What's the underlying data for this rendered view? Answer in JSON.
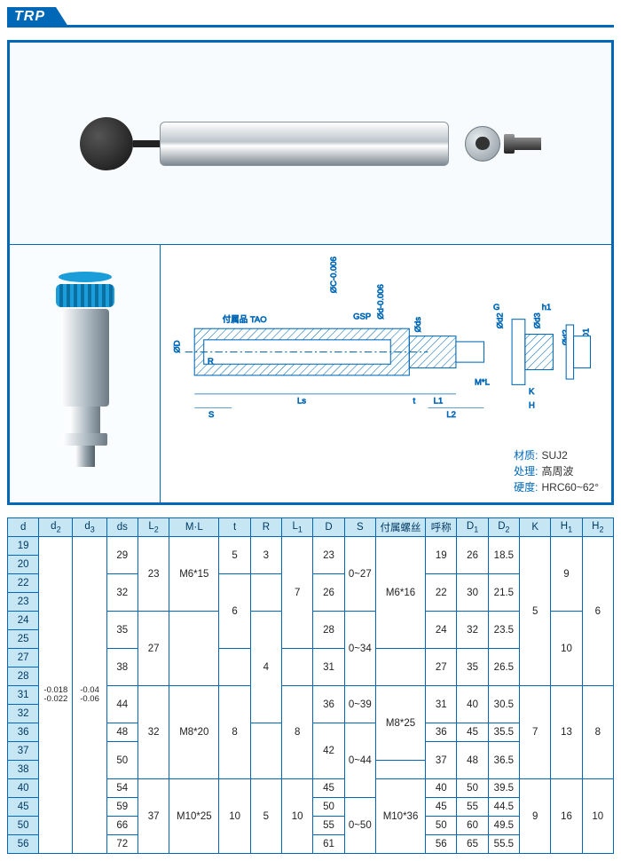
{
  "header": {
    "code": "TRP"
  },
  "material_box": {
    "rows": [
      {
        "label": "材质:",
        "value": "SUJ2"
      },
      {
        "label": "处理:",
        "value": "高周波"
      },
      {
        "label": "硬度:",
        "value": "HRC60~62°"
      }
    ]
  },
  "drawing_labels": {
    "attach": "付属品",
    "tao": "TAO",
    "gsp": "GSP",
    "dims": [
      "ØD",
      "R",
      "S",
      "Ls",
      "t",
      "L1",
      "L2",
      "M*L",
      "Øds",
      "Ød-0.006",
      "ØC-0.006",
      "Ød2",
      "Ød3",
      "G",
      "h1",
      "H",
      "K",
      "ØD1"
    ]
  },
  "table": {
    "columns": [
      "d",
      "d2",
      "d3",
      "ds",
      "L2",
      "M·L",
      "t",
      "R",
      "L1",
      "D",
      "S",
      "付属螺丝",
      "呼称",
      "D1",
      "D2",
      "K",
      "H1",
      "H2"
    ],
    "col_has_sub": [
      false,
      true,
      true,
      false,
      true,
      false,
      false,
      false,
      true,
      false,
      false,
      false,
      false,
      true,
      true,
      false,
      true,
      true
    ],
    "d_values": [
      "19",
      "20",
      "22",
      "23",
      "24",
      "25",
      "27",
      "28",
      "31",
      "32",
      "36",
      "37",
      "38",
      "40",
      "45",
      "50",
      "56"
    ],
    "d2_tol": "-0.018\n-0.022",
    "d3_tol": "-0.04\n-0.06",
    "ds_blocks": [
      {
        "v": "29",
        "span": 2
      },
      {
        "v": "32",
        "span": 2
      },
      {
        "v": "35",
        "span": 2
      },
      {
        "v": "38",
        "span": 2
      },
      {
        "v": "44",
        "span": 2
      },
      {
        "v": "48",
        "span": 1
      },
      {
        "v": "50",
        "span": 2
      },
      {
        "v": "54",
        "span": 1
      },
      {
        "v": "59",
        "span": 1
      },
      {
        "v": "66",
        "span": 1
      },
      {
        "v": "72",
        "span": 1
      }
    ],
    "L2_blocks": [
      {
        "v": "23",
        "span": 4
      },
      {
        "v": "27",
        "span": 4
      },
      {
        "v": "32",
        "span": 5
      },
      {
        "v": "37",
        "span": 4
      }
    ],
    "ML_blocks": [
      {
        "v": "M6*15",
        "span": 4
      },
      {
        "v": "",
        "span": 4
      },
      {
        "v": "M8*20",
        "span": 5
      },
      {
        "v": "M10*25",
        "span": 4
      }
    ],
    "t_blocks": [
      {
        "v": "5",
        "span": 2
      },
      {
        "v": "6",
        "span": 4
      },
      {
        "v": "",
        "span": 2
      },
      {
        "v": "8",
        "span": 5
      },
      {
        "v": "10",
        "span": 4
      }
    ],
    "R_blocks": [
      {
        "v": "3",
        "span": 2
      },
      {
        "v": "",
        "span": 2
      },
      {
        "v": "4",
        "span": 6
      },
      {
        "v": "",
        "span": 3
      },
      {
        "v": "5",
        "span": 4
      }
    ],
    "L1_blocks": [
      {
        "v": "7",
        "span": 6
      },
      {
        "v": "",
        "span": 2
      },
      {
        "v": "8",
        "span": 5
      },
      {
        "v": "10",
        "span": 4
      }
    ],
    "D_blocks": [
      {
        "v": "23",
        "span": 2
      },
      {
        "v": "26",
        "span": 2
      },
      {
        "v": "28",
        "span": 2
      },
      {
        "v": "31",
        "span": 2
      },
      {
        "v": "36",
        "span": 2
      },
      {
        "v": "42",
        "span": 3
      },
      {
        "v": "45",
        "span": 1
      },
      {
        "v": "50",
        "span": 1
      },
      {
        "v": "55",
        "span": 1
      },
      {
        "v": "61",
        "span": 1
      }
    ],
    "S_blocks": [
      {
        "v": "0~27",
        "span": 4
      },
      {
        "v": "0~34",
        "span": 4
      },
      {
        "v": "0~39",
        "span": 2
      },
      {
        "v": "0~44",
        "span": 4
      },
      {
        "v": "0~50",
        "span": 3
      }
    ],
    "screw_blocks": [
      {
        "v": "M6*16",
        "span": 6
      },
      {
        "v": "",
        "span": 2
      },
      {
        "v": "M8*25",
        "span": 4
      },
      {
        "v": "",
        "span": 1
      },
      {
        "v": "M10*36",
        "span": 4
      }
    ],
    "name_blocks": [
      {
        "v": "19",
        "span": 2
      },
      {
        "v": "22",
        "span": 2
      },
      {
        "v": "24",
        "span": 2
      },
      {
        "v": "27",
        "span": 2
      },
      {
        "v": "31",
        "span": 2
      },
      {
        "v": "36",
        "span": 1
      },
      {
        "v": "37",
        "span": 2
      },
      {
        "v": "40",
        "span": 1
      },
      {
        "v": "45",
        "span": 1
      },
      {
        "v": "50",
        "span": 1
      },
      {
        "v": "56",
        "span": 1
      }
    ],
    "D1_blocks": [
      {
        "v": "26",
        "span": 2
      },
      {
        "v": "30",
        "span": 2
      },
      {
        "v": "32",
        "span": 2
      },
      {
        "v": "35",
        "span": 2
      },
      {
        "v": "40",
        "span": 2
      },
      {
        "v": "45",
        "span": 1
      },
      {
        "v": "48",
        "span": 2
      },
      {
        "v": "50",
        "span": 1
      },
      {
        "v": "55",
        "span": 1
      },
      {
        "v": "60",
        "span": 1
      },
      {
        "v": "65",
        "span": 1
      }
    ],
    "D2_blocks": [
      {
        "v": "18.5",
        "span": 2
      },
      {
        "v": "21.5",
        "span": 2
      },
      {
        "v": "23.5",
        "span": 2
      },
      {
        "v": "26.5",
        "span": 2
      },
      {
        "v": "30.5",
        "span": 2
      },
      {
        "v": "35.5",
        "span": 1
      },
      {
        "v": "36.5",
        "span": 2
      },
      {
        "v": "39.5",
        "span": 1
      },
      {
        "v": "44.5",
        "span": 1
      },
      {
        "v": "49.5",
        "span": 1
      },
      {
        "v": "55.5",
        "span": 1
      }
    ],
    "K_blocks": [
      {
        "v": "5",
        "span": 8
      },
      {
        "v": "7",
        "span": 5
      },
      {
        "v": "9",
        "span": 4
      }
    ],
    "H1_blocks": [
      {
        "v": "9",
        "span": 4
      },
      {
        "v": "10",
        "span": 4
      },
      {
        "v": "13",
        "span": 5
      },
      {
        "v": "16",
        "span": 4
      }
    ],
    "H2_blocks": [
      {
        "v": "6",
        "span": 8
      },
      {
        "v": "8",
        "span": 5
      },
      {
        "v": "10",
        "span": 4
      }
    ]
  },
  "colors": {
    "brand": "#0068b7",
    "th_bg": "#c6e6f4",
    "accent": "#1a9dd9"
  }
}
